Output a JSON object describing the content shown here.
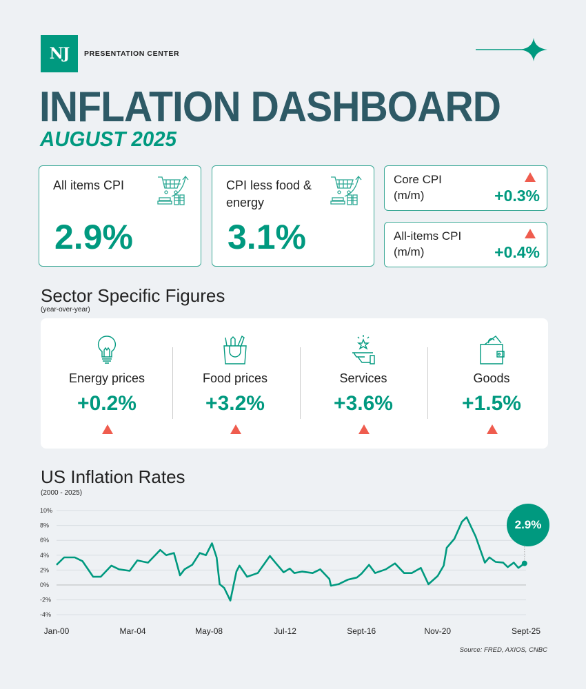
{
  "header": {
    "logo_text": "NJ",
    "org": "PRESENTATION CENTER",
    "title": "INFLATION DASHBOARD",
    "subtitle": "AUGUST 2025"
  },
  "colors": {
    "accent": "#00997f",
    "title": "#2e5a66",
    "up_arrow": "#ef5c4e",
    "background": "#eef1f4"
  },
  "kpis": [
    {
      "label": "All items CPI",
      "value": "2.9%",
      "icon": "shopping-cart-rising-icon"
    },
    {
      "label": "CPI less food & energy",
      "value": "3.1%",
      "icon": "shopping-cart-rising-icon"
    }
  ],
  "monthly": [
    {
      "label": "Core CPI",
      "sublabel": "(m/m)",
      "value": "+0.3%",
      "direction": "up"
    },
    {
      "label": "All-items CPI",
      "sublabel": "(m/m)",
      "value": "+0.4%",
      "direction": "up"
    }
  ],
  "sectors": {
    "title": "Sector Specific Figures",
    "subtitle": "(year-over-year)",
    "items": [
      {
        "label": "Energy prices",
        "value": "+0.2%",
        "icon": "lightbulb-icon",
        "direction": "up"
      },
      {
        "label": "Food prices",
        "value": "+3.2%",
        "icon": "grocery-bag-icon",
        "direction": "up"
      },
      {
        "label": "Services",
        "value": "+3.6%",
        "icon": "service-star-hand-icon",
        "direction": "up"
      },
      {
        "label": "Goods",
        "value": "+1.5%",
        "icon": "wallet-icon",
        "direction": "up"
      }
    ]
  },
  "chart_section": {
    "title": "US Inflation Rates",
    "subtitle": "(2000 - 2025)",
    "source": "Source: FRED, AXIOS, CNBC",
    "callout": "2.9%"
  },
  "chart_data": {
    "type": "line",
    "title": "US Inflation Rates",
    "subtitle": "(2000 - 2025)",
    "ylim": [
      -4,
      10
    ],
    "grid": true,
    "y_ticks": [
      "10%",
      "8%",
      "6%",
      "4%",
      "2%",
      "0%",
      "-2%",
      "-4%"
    ],
    "y_tick_values": [
      10,
      8,
      6,
      4,
      2,
      0,
      -2,
      -4
    ],
    "x_ticks": [
      "Jan-00",
      "Mar-04",
      "May-08",
      "Jul-12",
      "Sept-16",
      "Nov-20",
      "Sept-25"
    ],
    "x_tick_dates": [
      "2000-01",
      "2004-03",
      "2008-05",
      "2012-07",
      "2016-09",
      "2020-11",
      "2025-09"
    ],
    "series": [
      {
        "color": "#00997f",
        "points": [
          [
            "2000-01",
            2.7
          ],
          [
            "2000-06",
            3.7
          ],
          [
            "2001-01",
            3.7
          ],
          [
            "2001-06",
            3.2
          ],
          [
            "2002-01",
            1.1
          ],
          [
            "2002-06",
            1.1
          ],
          [
            "2003-01",
            2.6
          ],
          [
            "2003-06",
            2.1
          ],
          [
            "2004-01",
            1.9
          ],
          [
            "2004-06",
            3.3
          ],
          [
            "2005-01",
            3.0
          ],
          [
            "2005-09",
            4.7
          ],
          [
            "2006-01",
            4.0
          ],
          [
            "2006-06",
            4.3
          ],
          [
            "2006-10",
            1.3
          ],
          [
            "2007-01",
            2.1
          ],
          [
            "2007-06",
            2.7
          ],
          [
            "2007-11",
            4.3
          ],
          [
            "2008-03",
            4.0
          ],
          [
            "2008-07",
            5.6
          ],
          [
            "2008-10",
            3.7
          ],
          [
            "2008-12",
            0.1
          ],
          [
            "2009-03",
            -0.4
          ],
          [
            "2009-07",
            -2.1
          ],
          [
            "2009-11",
            1.8
          ],
          [
            "2010-01",
            2.6
          ],
          [
            "2010-06",
            1.1
          ],
          [
            "2011-01",
            1.6
          ],
          [
            "2011-09",
            3.9
          ],
          [
            "2012-01",
            2.9
          ],
          [
            "2012-06",
            1.7
          ],
          [
            "2012-10",
            2.2
          ],
          [
            "2013-01",
            1.6
          ],
          [
            "2013-06",
            1.8
          ],
          [
            "2014-01",
            1.6
          ],
          [
            "2014-06",
            2.1
          ],
          [
            "2014-12",
            0.8
          ],
          [
            "2015-01",
            -0.1
          ],
          [
            "2015-06",
            0.1
          ],
          [
            "2015-12",
            0.7
          ],
          [
            "2016-06",
            1.0
          ],
          [
            "2016-09",
            1.5
          ],
          [
            "2017-02",
            2.7
          ],
          [
            "2017-06",
            1.6
          ],
          [
            "2018-01",
            2.1
          ],
          [
            "2018-07",
            2.9
          ],
          [
            "2019-01",
            1.6
          ],
          [
            "2019-06",
            1.6
          ],
          [
            "2019-12",
            2.3
          ],
          [
            "2020-05",
            0.1
          ],
          [
            "2020-11",
            1.2
          ],
          [
            "2021-03",
            2.6
          ],
          [
            "2021-05",
            5.0
          ],
          [
            "2021-10",
            6.2
          ],
          [
            "2022-03",
            8.5
          ],
          [
            "2022-06",
            9.1
          ],
          [
            "2022-12",
            6.5
          ],
          [
            "2023-06",
            3.0
          ],
          [
            "2023-09",
            3.7
          ],
          [
            "2024-01",
            3.1
          ],
          [
            "2024-06",
            3.0
          ],
          [
            "2024-09",
            2.4
          ],
          [
            "2025-01",
            3.0
          ],
          [
            "2025-04",
            2.3
          ],
          [
            "2025-08",
            2.9
          ]
        ]
      }
    ]
  }
}
